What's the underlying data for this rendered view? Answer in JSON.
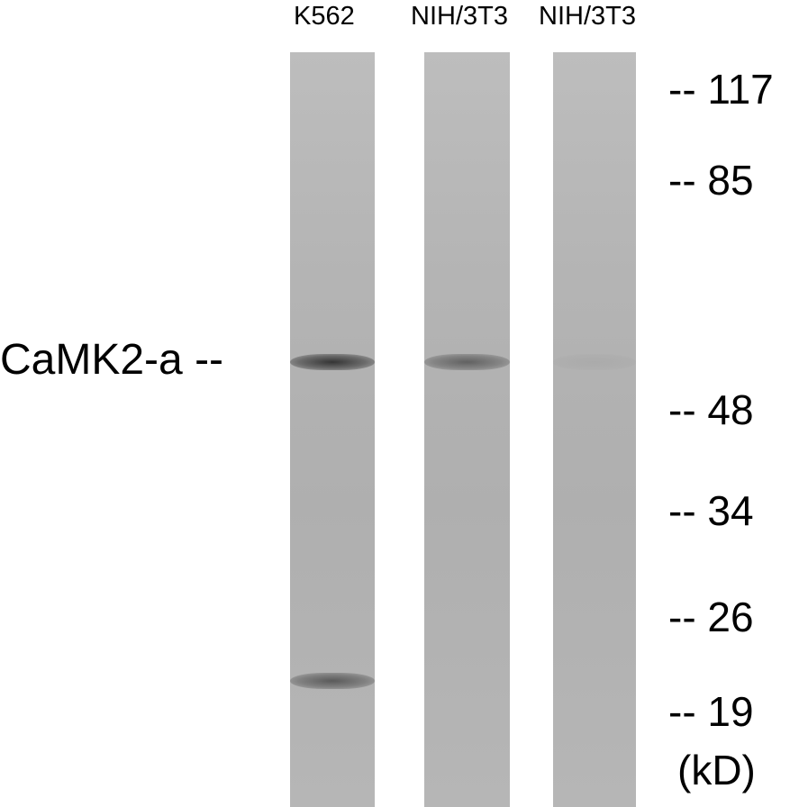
{
  "lanes": [
    {
      "label": "K562",
      "bands": [
        {
          "kd": 54,
          "intensity": 0.85
        },
        {
          "kd": 21,
          "intensity": 0.6
        }
      ]
    },
    {
      "label": "NIH/3T3",
      "bands": [
        {
          "kd": 54,
          "intensity": 0.55
        }
      ]
    },
    {
      "label": "NIH/3T3",
      "bands": [
        {
          "kd": 54,
          "intensity": 0.05
        }
      ]
    }
  ],
  "protein_label": "CaMK2-a --",
  "markers": [
    {
      "text": "-- 117",
      "kd": 117
    },
    {
      "text": "-- 85",
      "kd": 85
    },
    {
      "text": "-- 48",
      "kd": 48
    },
    {
      "text": "-- 34",
      "kd": 34
    },
    {
      "text": "-- 26",
      "kd": 26
    },
    {
      "text": "-- 19",
      "kd": 19
    }
  ],
  "unit": "(kD)"
}
